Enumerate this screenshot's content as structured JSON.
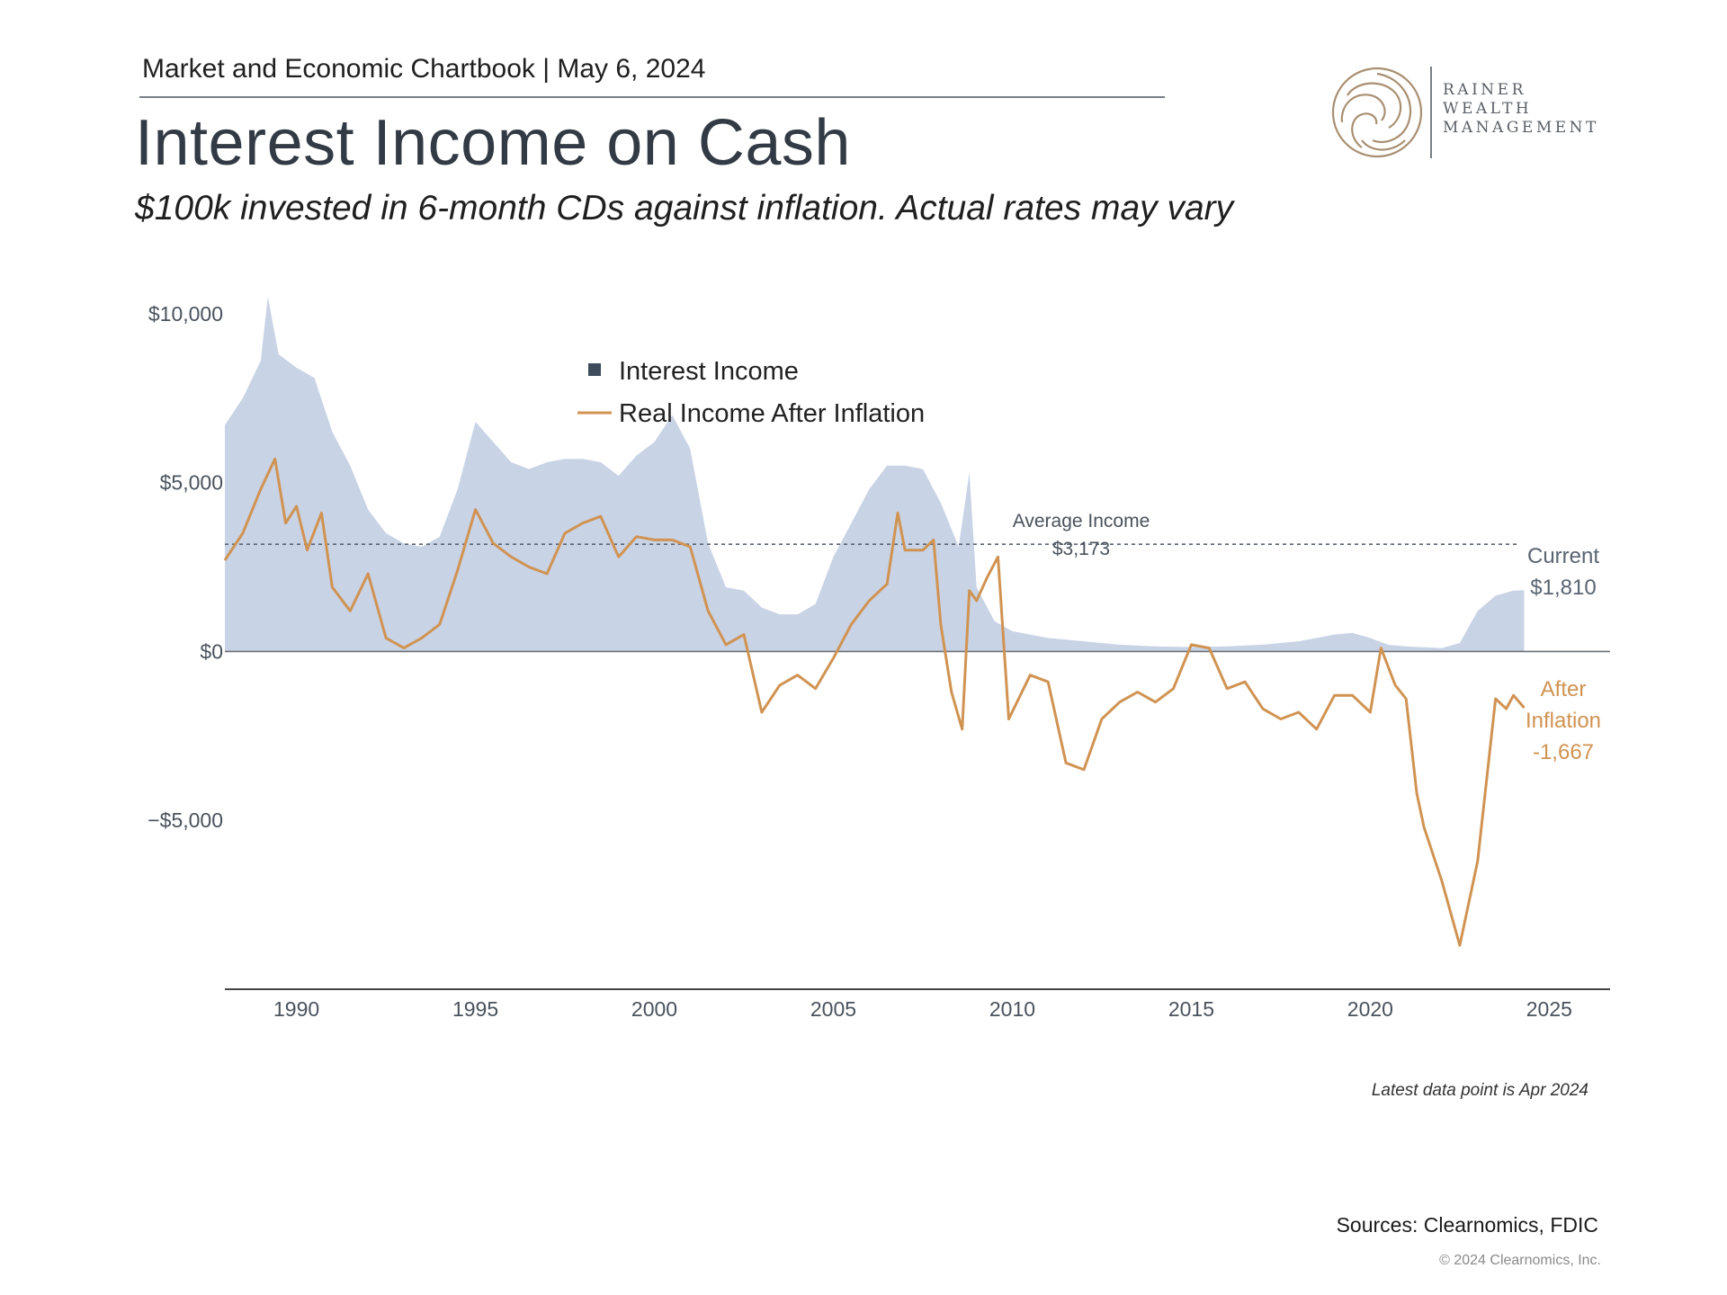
{
  "header": {
    "kicker": "Market and Economic Chartbook | May 6, 2024",
    "title": "Interest Income on Cash",
    "subtitle": "$100k invested in 6-month CDs against inflation. Actual rates may vary"
  },
  "logo": {
    "line1": "RAINER",
    "line2": "WEALTH",
    "line3": "MANAGEMENT",
    "color": "#a98f72"
  },
  "chart_data": {
    "type": "area",
    "x_label": "",
    "y_label": "",
    "xlim": [
      1988,
      2026.7
    ],
    "ylim": [
      -10000,
      10500
    ],
    "grid": false,
    "legend_position": "top-center",
    "x_ticks": [
      1990,
      1995,
      2000,
      2005,
      2010,
      2015,
      2020,
      2025
    ],
    "y_ticks": [
      {
        "value": 10000,
        "label": "$10,000"
      },
      {
        "value": 5000,
        "label": "$5,000"
      },
      {
        "value": 0,
        "label": "$0"
      },
      {
        "value": -5000,
        "label": "−$5,000"
      }
    ],
    "legend": [
      {
        "label": "Interest Income",
        "color": "#3d4b5c",
        "marker": "square"
      },
      {
        "label": "Real Income After Inflation",
        "color": "#d09352",
        "marker": "line"
      }
    ],
    "colors": {
      "interest": "#c9d3e6",
      "real": "#d09352",
      "axis": "#6b7079",
      "avg": "#5a6472"
    },
    "series": [
      {
        "name": "Interest Income",
        "style": "area",
        "points": [
          [
            1988.0,
            6700
          ],
          [
            1988.5,
            7500
          ],
          [
            1989.0,
            8600
          ],
          [
            1989.2,
            10500
          ],
          [
            1989.5,
            8800
          ],
          [
            1990.0,
            8400
          ],
          [
            1990.5,
            8100
          ],
          [
            1991.0,
            6500
          ],
          [
            1991.5,
            5500
          ],
          [
            1992.0,
            4200
          ],
          [
            1992.5,
            3500
          ],
          [
            1993.0,
            3200
          ],
          [
            1993.5,
            3100
          ],
          [
            1994.0,
            3400
          ],
          [
            1994.5,
            4800
          ],
          [
            1995.0,
            6800
          ],
          [
            1995.5,
            6200
          ],
          [
            1996.0,
            5600
          ],
          [
            1996.5,
            5400
          ],
          [
            1997.0,
            5600
          ],
          [
            1997.5,
            5700
          ],
          [
            1998.0,
            5700
          ],
          [
            1998.5,
            5600
          ],
          [
            1999.0,
            5200
          ],
          [
            1999.5,
            5800
          ],
          [
            2000.0,
            6200
          ],
          [
            2000.5,
            7000
          ],
          [
            2001.0,
            6000
          ],
          [
            2001.5,
            3200
          ],
          [
            2002.0,
            1900
          ],
          [
            2002.5,
            1800
          ],
          [
            2003.0,
            1300
          ],
          [
            2003.5,
            1100
          ],
          [
            2004.0,
            1100
          ],
          [
            2004.5,
            1400
          ],
          [
            2005.0,
            2800
          ],
          [
            2005.5,
            3800
          ],
          [
            2006.0,
            4800
          ],
          [
            2006.5,
            5500
          ],
          [
            2007.0,
            5500
          ],
          [
            2007.5,
            5400
          ],
          [
            2008.0,
            4400
          ],
          [
            2008.5,
            3100
          ],
          [
            2008.8,
            5300
          ],
          [
            2009.0,
            1900
          ],
          [
            2009.5,
            900
          ],
          [
            2010.0,
            600
          ],
          [
            2011.0,
            400
          ],
          [
            2012.0,
            300
          ],
          [
            2013.0,
            200
          ],
          [
            2014.0,
            150
          ],
          [
            2015.0,
            130
          ],
          [
            2016.0,
            150
          ],
          [
            2017.0,
            200
          ],
          [
            2018.0,
            300
          ],
          [
            2019.0,
            500
          ],
          [
            2019.5,
            550
          ],
          [
            2020.0,
            400
          ],
          [
            2020.5,
            200
          ],
          [
            2021.0,
            150
          ],
          [
            2022.0,
            100
          ],
          [
            2022.5,
            250
          ],
          [
            2023.0,
            1200
          ],
          [
            2023.5,
            1650
          ],
          [
            2024.0,
            1800
          ],
          [
            2024.3,
            1810
          ]
        ]
      },
      {
        "name": "Real Income After Inflation",
        "style": "line",
        "points": [
          [
            1988.0,
            2700
          ],
          [
            1988.5,
            3500
          ],
          [
            1989.0,
            4800
          ],
          [
            1989.4,
            5700
          ],
          [
            1989.7,
            3800
          ],
          [
            1990.0,
            4300
          ],
          [
            1990.3,
            3000
          ],
          [
            1990.7,
            4100
          ],
          [
            1991.0,
            1900
          ],
          [
            1991.5,
            1200
          ],
          [
            1992.0,
            2300
          ],
          [
            1992.5,
            400
          ],
          [
            1993.0,
            100
          ],
          [
            1993.5,
            400
          ],
          [
            1994.0,
            800
          ],
          [
            1994.5,
            2400
          ],
          [
            1995.0,
            4200
          ],
          [
            1995.5,
            3200
          ],
          [
            1996.0,
            2800
          ],
          [
            1996.5,
            2500
          ],
          [
            1997.0,
            2300
          ],
          [
            1997.5,
            3500
          ],
          [
            1998.0,
            3800
          ],
          [
            1998.5,
            4000
          ],
          [
            1999.0,
            2800
          ],
          [
            1999.5,
            3400
          ],
          [
            2000.0,
            3300
          ],
          [
            2000.5,
            3300
          ],
          [
            2001.0,
            3100
          ],
          [
            2001.5,
            1200
          ],
          [
            2002.0,
            200
          ],
          [
            2002.5,
            500
          ],
          [
            2003.0,
            -1800
          ],
          [
            2003.5,
            -1000
          ],
          [
            2004.0,
            -700
          ],
          [
            2004.5,
            -1100
          ],
          [
            2005.0,
            -200
          ],
          [
            2005.5,
            800
          ],
          [
            2006.0,
            1500
          ],
          [
            2006.5,
            2000
          ],
          [
            2006.8,
            4100
          ],
          [
            2007.0,
            3000
          ],
          [
            2007.5,
            3000
          ],
          [
            2007.8,
            3300
          ],
          [
            2008.0,
            800
          ],
          [
            2008.3,
            -1200
          ],
          [
            2008.6,
            -2300
          ],
          [
            2008.8,
            1800
          ],
          [
            2009.0,
            1500
          ],
          [
            2009.3,
            2200
          ],
          [
            2009.6,
            2800
          ],
          [
            2009.9,
            -2000
          ],
          [
            2010.5,
            -700
          ],
          [
            2011.0,
            -900
          ],
          [
            2011.5,
            -3300
          ],
          [
            2012.0,
            -3500
          ],
          [
            2012.5,
            -2000
          ],
          [
            2013.0,
            -1500
          ],
          [
            2013.5,
            -1200
          ],
          [
            2014.0,
            -1500
          ],
          [
            2014.5,
            -1100
          ],
          [
            2015.0,
            200
          ],
          [
            2015.5,
            100
          ],
          [
            2016.0,
            -1100
          ],
          [
            2016.5,
            -900
          ],
          [
            2017.0,
            -1700
          ],
          [
            2017.5,
            -2000
          ],
          [
            2018.0,
            -1800
          ],
          [
            2018.5,
            -2300
          ],
          [
            2019.0,
            -1300
          ],
          [
            2019.5,
            -1300
          ],
          [
            2020.0,
            -1800
          ],
          [
            2020.3,
            100
          ],
          [
            2020.7,
            -1000
          ],
          [
            2021.0,
            -1400
          ],
          [
            2021.3,
            -4200
          ],
          [
            2021.5,
            -5200
          ],
          [
            2022.0,
            -6800
          ],
          [
            2022.5,
            -8700
          ],
          [
            2023.0,
            -6200
          ],
          [
            2023.5,
            -1400
          ],
          [
            2023.8,
            -1700
          ],
          [
            2024.0,
            -1300
          ],
          [
            2024.3,
            -1667
          ]
        ]
      }
    ],
    "average": {
      "value": 3173,
      "label": "Average Income",
      "value_label": "$3,173"
    },
    "end_labels": {
      "current": {
        "line1": "Current",
        "line2": "$1,810"
      },
      "after": {
        "line1": "After",
        "line2": "Inflation",
        "line3": "-1,667"
      }
    },
    "note": "Latest data point is Apr 2024"
  },
  "footer": {
    "sources": "Sources: Clearnomics, FDIC",
    "copyright": "© 2024 Clearnomics, Inc."
  }
}
